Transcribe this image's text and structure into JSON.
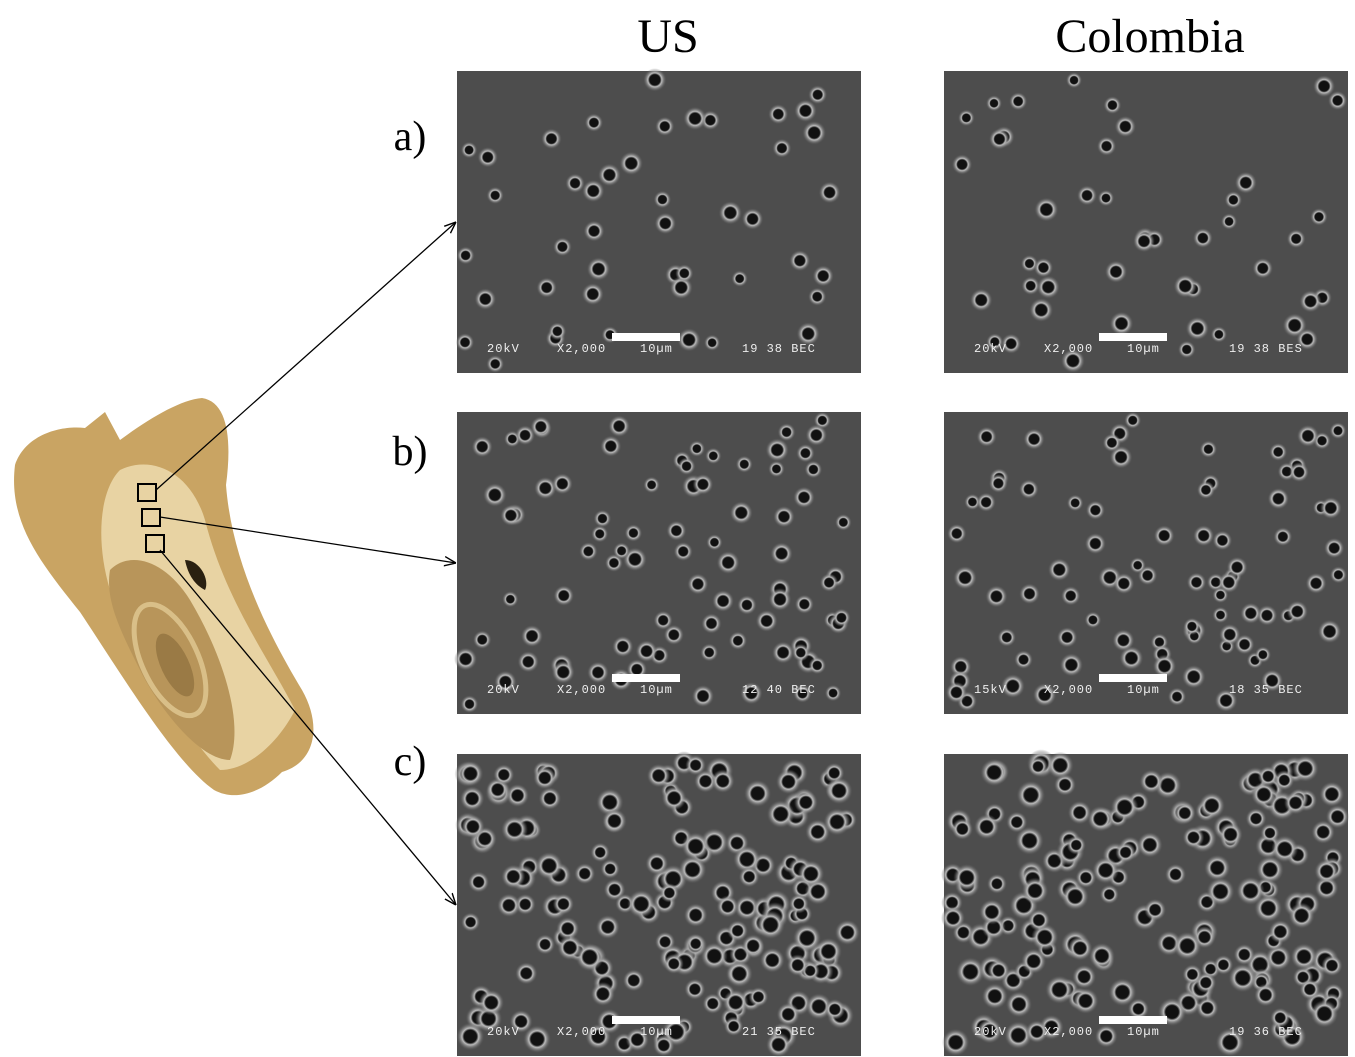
{
  "columns": [
    "US",
    "Colombia"
  ],
  "rows": [
    {
      "label": "a)",
      "panels": [
        {
          "voltage": "20kV",
          "magnification": "X2,000",
          "scale": "10µm",
          "code": "19 38 BEC"
        },
        {
          "voltage": "20kV",
          "magnification": "X2,000",
          "scale": "10µm",
          "code": "19 38 BES"
        }
      ]
    },
    {
      "label": "b)",
      "panels": [
        {
          "voltage": "20kV",
          "magnification": "X2,000",
          "scale": "10µm",
          "code": "12 40 BEC"
        },
        {
          "voltage": "15kV",
          "magnification": "X2,000",
          "scale": "10µm",
          "code": "18 35 BEC"
        }
      ]
    },
    {
      "label": "c)",
      "panels": [
        {
          "voltage": "20kV",
          "magnification": "X2,000",
          "scale": "10µm",
          "code": "21 35 BEC"
        },
        {
          "voltage": "20kV",
          "magnification": "X2,000",
          "scale": "10µm",
          "code": "19 36 BEC"
        }
      ]
    }
  ]
}
